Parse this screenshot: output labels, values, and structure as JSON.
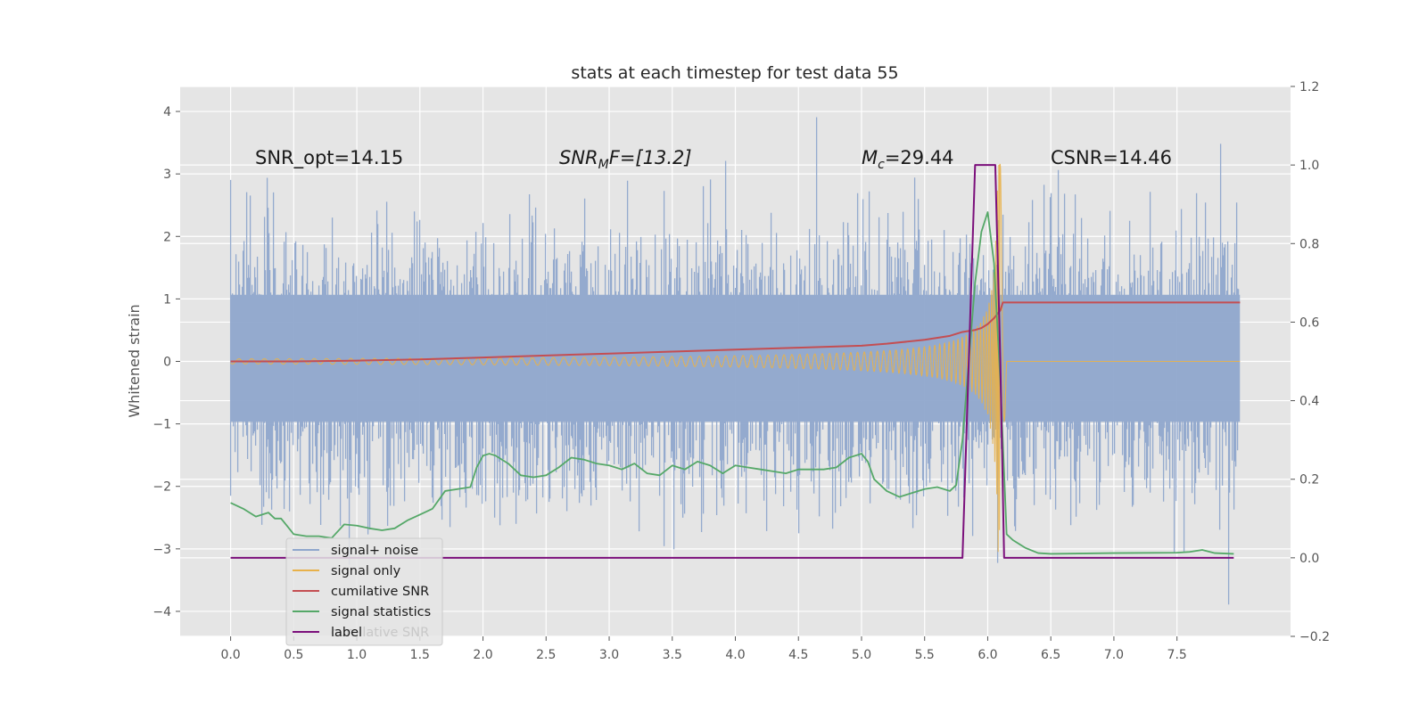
{
  "chart_data": {
    "type": "line",
    "title": "stats at each timestep for test data 55",
    "ylabel": "Whitened strain",
    "xlabel": "",
    "xlim": [
      -0.4,
      8.4
    ],
    "ylim": [
      -4.4,
      4.4
    ],
    "y2lim": [
      -0.2,
      1.2
    ],
    "xticks": [
      "0.0",
      "0.5",
      "1.0",
      "1.5",
      "2.0",
      "2.5",
      "3.0",
      "3.5",
      "4.0",
      "4.5",
      "5.0",
      "5.5",
      "6.0",
      "6.5",
      "7.0",
      "7.5"
    ],
    "yticks": [
      "4",
      "3",
      "2",
      "1",
      "0",
      "−1",
      "−2",
      "−3",
      "−4"
    ],
    "y2ticks": [
      "1.2",
      "1.0",
      "0.8",
      "0.6",
      "0.4",
      "0.2",
      "0.0",
      "−0.2"
    ],
    "grid": true,
    "legend_position": "lower-left",
    "colors": {
      "signal_noise": "#8fa6cc",
      "signal_only": "#e8b14a",
      "cumulative_snr": "#c44e52",
      "signal_statistics": "#55a868",
      "label": "#7b0f7b",
      "plot_background": "#e5e5e5"
    },
    "annotations": {
      "snr_opt": "SNR_opt=14.15",
      "snr_mf_base": "SNR",
      "snr_mf_sub": "M",
      "snr_mf_rest": "F=[13.2]",
      "mc_base": "M",
      "mc_sub": "c",
      "mc_rest": "=29.44",
      "csnr": "CSNR=14.46"
    },
    "series": [
      {
        "name": "signal+ noise",
        "axis": "left",
        "kind": "noise",
        "x_range": [
          0.0,
          8.0
        ],
        "typical_range": [
          -1.8,
          1.9
        ],
        "y_min": -3.9,
        "y_max": 4.0
      },
      {
        "name": "signal only",
        "axis": "left",
        "kind": "chirp",
        "x_range": [
          0.0,
          8.0
        ],
        "merger_time": 6.1,
        "peak_amplitude": 3.2
      },
      {
        "name": "cumilative SNR",
        "axis": "right",
        "x": [
          0.0,
          0.5,
          1.0,
          1.5,
          2.0,
          2.5,
          3.0,
          3.5,
          4.0,
          4.5,
          5.0,
          5.2,
          5.5,
          5.7,
          5.8,
          5.9,
          5.95,
          6.0,
          6.05,
          6.1,
          6.12,
          7.0,
          8.0
        ],
        "y": [
          0.5,
          0.5,
          0.502,
          0.505,
          0.51,
          0.515,
          0.52,
          0.525,
          0.53,
          0.535,
          0.54,
          0.545,
          0.555,
          0.565,
          0.575,
          0.58,
          0.585,
          0.595,
          0.61,
          0.63,
          0.65,
          0.65,
          0.65
        ]
      },
      {
        "name": "signal statistics",
        "axis": "right",
        "x": [
          0.0,
          0.1,
          0.2,
          0.3,
          0.35,
          0.4,
          0.45,
          0.5,
          0.6,
          0.7,
          0.8,
          0.9,
          1.0,
          1.1,
          1.2,
          1.3,
          1.4,
          1.5,
          1.6,
          1.7,
          1.8,
          1.9,
          1.95,
          2.0,
          2.05,
          2.1,
          2.2,
          2.3,
          2.4,
          2.5,
          2.6,
          2.7,
          2.8,
          2.9,
          3.0,
          3.1,
          3.2,
          3.3,
          3.4,
          3.5,
          3.6,
          3.7,
          3.8,
          3.9,
          4.0,
          4.1,
          4.2,
          4.3,
          4.4,
          4.5,
          4.6,
          4.7,
          4.8,
          4.9,
          5.0,
          5.05,
          5.1,
          5.2,
          5.3,
          5.4,
          5.5,
          5.6,
          5.7,
          5.75,
          5.8,
          5.9,
          5.95,
          6.0,
          6.05,
          6.1,
          6.15,
          6.2,
          6.3,
          6.4,
          6.5,
          7.0,
          7.5,
          7.6,
          7.7,
          7.8,
          7.95
        ],
        "y": [
          0.14,
          0.125,
          0.105,
          0.115,
          0.1,
          0.1,
          0.08,
          0.06,
          0.055,
          0.055,
          0.05,
          0.085,
          0.082,
          0.075,
          0.07,
          0.075,
          0.095,
          0.11,
          0.125,
          0.17,
          0.175,
          0.18,
          0.23,
          0.26,
          0.265,
          0.26,
          0.24,
          0.21,
          0.205,
          0.21,
          0.23,
          0.255,
          0.25,
          0.24,
          0.235,
          0.225,
          0.24,
          0.215,
          0.21,
          0.235,
          0.225,
          0.245,
          0.235,
          0.215,
          0.235,
          0.23,
          0.225,
          0.22,
          0.215,
          0.225,
          0.225,
          0.225,
          0.23,
          0.255,
          0.265,
          0.245,
          0.2,
          0.17,
          0.155,
          0.165,
          0.175,
          0.18,
          0.17,
          0.185,
          0.3,
          0.7,
          0.83,
          0.88,
          0.75,
          0.45,
          0.06,
          0.045,
          0.025,
          0.012,
          0.01,
          0.012,
          0.013,
          0.015,
          0.02,
          0.012,
          0.01
        ]
      },
      {
        "name": "label",
        "axis": "right",
        "x": [
          0.0,
          5.8,
          5.85,
          5.9,
          6.06,
          6.1,
          6.13,
          7.95
        ],
        "y": [
          0.0,
          0.0,
          0.5,
          1.0,
          1.0,
          0.5,
          0.0,
          0.0
        ]
      }
    ],
    "legend_ghost_text": "cumilative SNR"
  }
}
